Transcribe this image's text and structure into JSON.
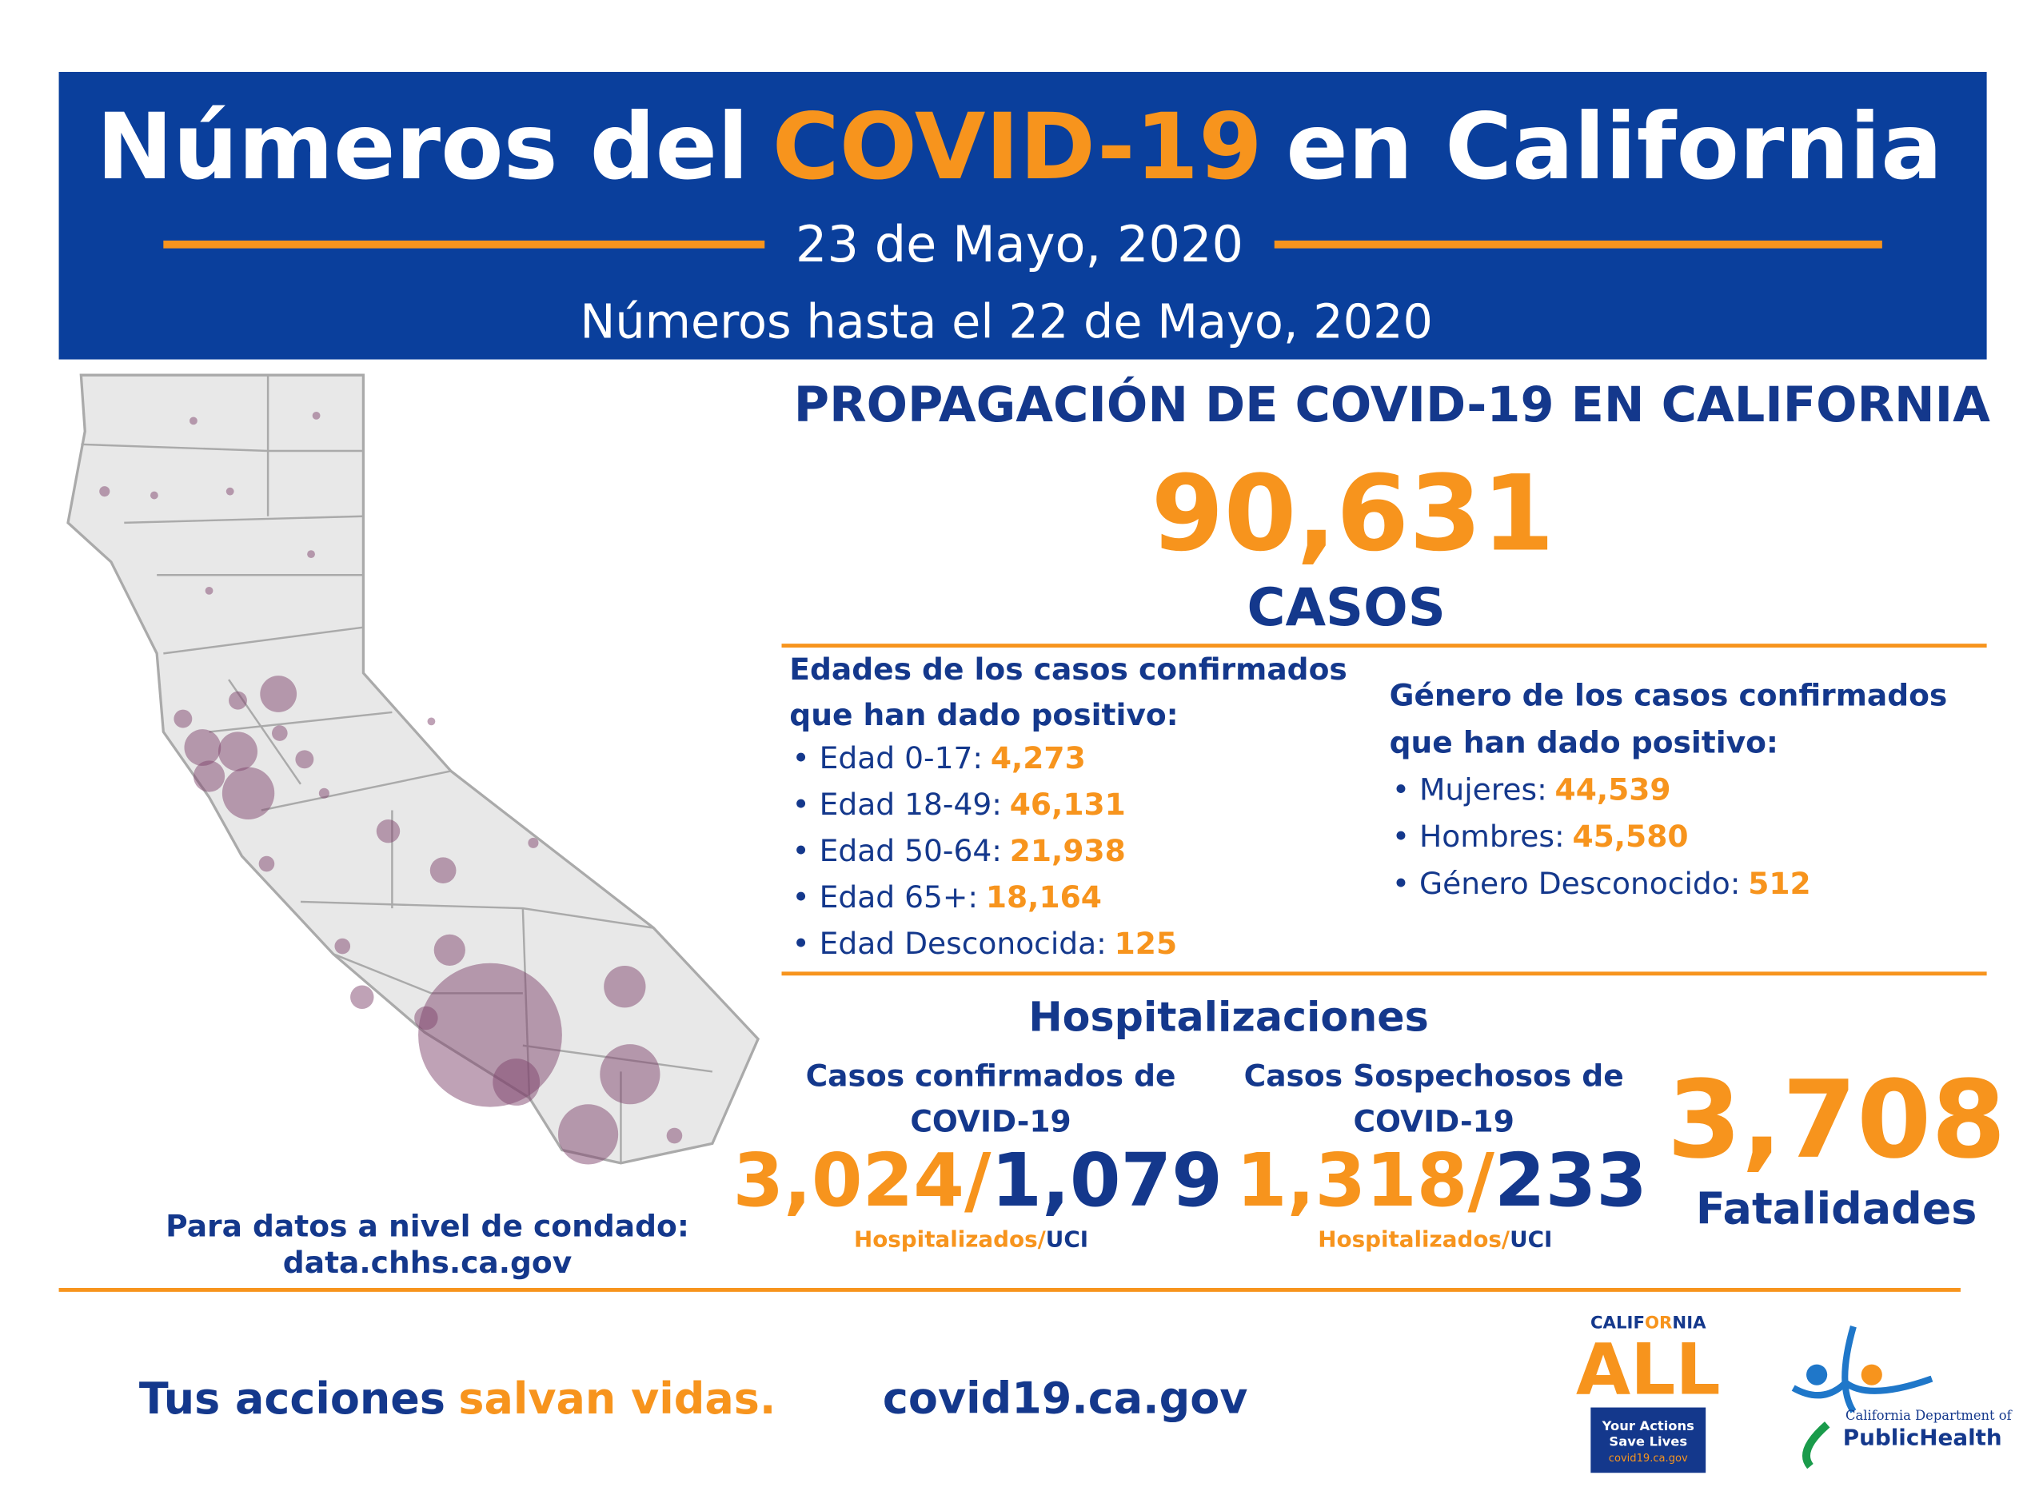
{
  "header": {
    "title_start": "Números del",
    "title_highlight": "COVID-19",
    "title_end": "en California",
    "date": "23 de Mayo, 2020",
    "data_through": "Números hasta el 22 de Mayo, 2020"
  },
  "spread": {
    "heading": "PROPAGACIÓN DE COVID-19 EN CALIFORNIA",
    "total_cases": "90,631",
    "cases_label": "CASOS"
  },
  "ages": {
    "heading_line1": "Edades de los casos confirmados",
    "heading_line2": "que han dado positivo:",
    "items": [
      {
        "label": "• Edad 0-17:",
        "value": "4,273"
      },
      {
        "label": "• Edad 18-49:",
        "value": "46,131"
      },
      {
        "label": "• Edad 50-64:",
        "value": "21,938"
      },
      {
        "label": "• Edad 65+:",
        "value": "18,164"
      },
      {
        "label": "• Edad Desconocida:",
        "value": "125"
      }
    ]
  },
  "gender": {
    "heading_line1": "Género de los casos confirmados",
    "heading_line2": "que han dado positivo:",
    "items": [
      {
        "label": "• Mujeres:",
        "value": "44,539"
      },
      {
        "label": "• Hombres:",
        "value": "45,580"
      },
      {
        "label": "• Género Desconocido:",
        "value": "512"
      }
    ]
  },
  "hospitalizations": {
    "heading": "Hospitalizaciones",
    "confirmed": {
      "label_line1": "Casos confirmados de",
      "label_line2": "COVID-19",
      "hospitalized": "3,024",
      "separator": "/",
      "icu": "1,079",
      "sub_hospitalized": "Hospitalizados",
      "sub_separator": "/",
      "sub_icu": "UCI"
    },
    "suspected": {
      "label_line1": "Casos Sospechosos de",
      "label_line2": "COVID-19",
      "hospitalized": "1,318",
      "separator": "/",
      "icu": "233",
      "sub_hospitalized": "Hospitalizados",
      "sub_separator": "/",
      "sub_icu": "UCI"
    }
  },
  "fatalities": {
    "value": "3,708",
    "label": "Fatalidades"
  },
  "county_data": {
    "line1": "Para datos a nivel de condado:",
    "line2": "data.chhs.ca.gov"
  },
  "footer": {
    "slogan_start": "Tus acciones",
    "slogan_highlight": "salvan vidas.",
    "website": "covid19.ca.gov"
  },
  "logos": {
    "ca_all": {
      "word_start": "CALIF",
      "word_highlight": "OR",
      "word_end": "NIA",
      "big": "ALL",
      "line1": "Your Actions",
      "line2": "Save Lives",
      "line3": "covid19.ca.gov"
    },
    "cdph": {
      "line1": "California Department of",
      "line2": "PublicHealth"
    }
  }
}
